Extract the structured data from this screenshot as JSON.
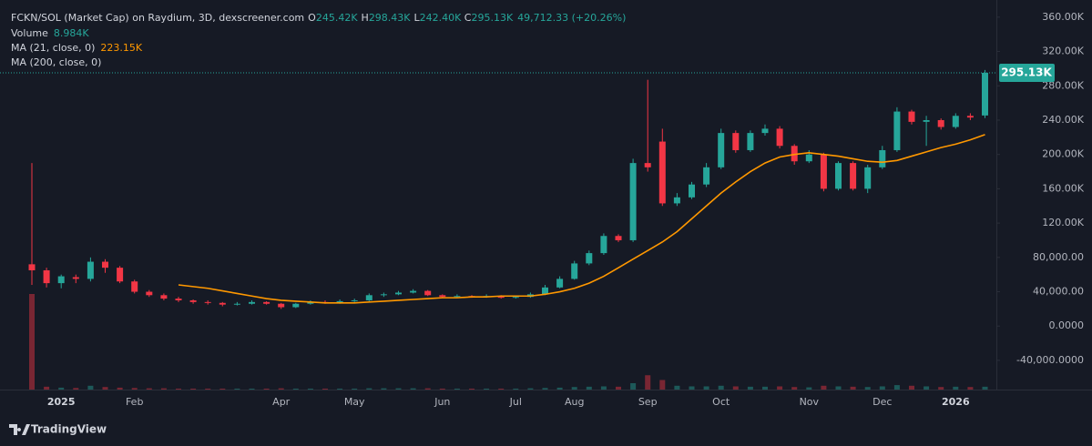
{
  "chart_data": {
    "type": "candlestick",
    "title": "FCKN/SOL (Market Cap) on Raydium, 3D, dexscreener.com",
    "legend": {
      "o": "O",
      "open": "245.42K",
      "h": "H",
      "high": "298.43K",
      "l": "L",
      "low": "242.40K",
      "c": "C",
      "close": "295.13K",
      "change": "49,712.33 (+20.26%)"
    },
    "last_price_label": "295.13K",
    "brand": "TradingView",
    "up_color": "#26a69a",
    "down_color": "#f23645",
    "categories": [
      null,
      null,
      "2025",
      null,
      null,
      null,
      null,
      "Feb",
      null,
      null,
      null,
      null,
      null,
      null,
      null,
      null,
      null,
      "Apr",
      null,
      null,
      null,
      null,
      "May",
      null,
      null,
      null,
      null,
      null,
      "Jun",
      null,
      null,
      null,
      null,
      "Jul",
      null,
      null,
      null,
      "Aug",
      null,
      null,
      null,
      null,
      "Sep",
      null,
      null,
      null,
      null,
      "Oct",
      null,
      null,
      null,
      null,
      null,
      "Nov",
      null,
      null,
      null,
      null,
      "Dec",
      null,
      null,
      null,
      null,
      "2026",
      null,
      null
    ],
    "open": [
      72000,
      65000,
      50000,
      57000,
      55000,
      75000,
      68000,
      52000,
      40000,
      36000,
      32000,
      30000,
      28000,
      27000,
      25000,
      26000,
      28000,
      26000,
      22000,
      26000,
      28000,
      27000,
      29000,
      30000,
      36000,
      37000,
      39000,
      41000,
      36000,
      34000,
      35000,
      34000,
      35000,
      33000,
      34000,
      37000,
      45000,
      55000,
      73000,
      85000,
      105000,
      100000,
      190000,
      215000,
      143000,
      150000,
      165000,
      185000,
      225000,
      205000,
      225000,
      230000,
      210000,
      192000,
      200000,
      160000,
      190000,
      160000,
      185000,
      205000,
      250000,
      238000,
      240000,
      232000,
      245000,
      245420
    ],
    "high": [
      190000,
      68000,
      60000,
      60000,
      80000,
      78000,
      70000,
      54000,
      42000,
      38000,
      34000,
      31000,
      30000,
      28000,
      28000,
      30000,
      29000,
      27000,
      27000,
      30000,
      30000,
      31000,
      32000,
      38000,
      39000,
      41000,
      43000,
      42000,
      37000,
      37000,
      36000,
      37000,
      36000,
      35000,
      39000,
      48000,
      58000,
      76000,
      88000,
      108000,
      107000,
      195000,
      287000,
      230000,
      155000,
      168000,
      190000,
      230000,
      228000,
      228000,
      235000,
      233000,
      212000,
      205000,
      202000,
      192000,
      192000,
      188000,
      210000,
      255000,
      252000,
      245000,
      242000,
      248000,
      248000,
      298430
    ],
    "low": [
      48000,
      45000,
      44000,
      50000,
      52000,
      62000,
      50000,
      38000,
      34000,
      30000,
      28000,
      26000,
      25000,
      23000,
      24000,
      25000,
      25000,
      20000,
      21000,
      25000,
      26000,
      26000,
      28000,
      29000,
      34000,
      36000,
      38000,
      35000,
      33000,
      33000,
      33000,
      33000,
      32000,
      32000,
      33000,
      36000,
      44000,
      54000,
      71000,
      83000,
      98000,
      98000,
      180000,
      140000,
      140000,
      148000,
      162000,
      183000,
      202000,
      203000,
      222000,
      207000,
      188000,
      190000,
      157000,
      158000,
      158000,
      155000,
      183000,
      203000,
      235000,
      210000,
      229000,
      230000,
      240000,
      242400
    ],
    "close": [
      65000,
      50000,
      58000,
      55000,
      75000,
      68000,
      52000,
      40000,
      36000,
      32000,
      30000,
      28000,
      27000,
      25000,
      26000,
      28000,
      26000,
      22000,
      26000,
      28000,
      27000,
      29000,
      30000,
      36000,
      37000,
      39000,
      41000,
      36000,
      34000,
      35000,
      34000,
      35000,
      33000,
      34000,
      37000,
      45000,
      55000,
      73000,
      85000,
      105000,
      100000,
      190000,
      185000,
      143000,
      150000,
      165000,
      185000,
      225000,
      205000,
      225000,
      230000,
      210000,
      192000,
      200000,
      160000,
      190000,
      160000,
      185000,
      205000,
      250000,
      238000,
      240000,
      232000,
      245000,
      243000,
      295130
    ],
    "volume": {
      "label": "Volume",
      "value_label": "8.984K",
      "values": [
        300000,
        9000,
        6000,
        5000,
        12000,
        8000,
        6000,
        5000,
        4000,
        4000,
        3000,
        3000,
        3000,
        3000,
        3000,
        3000,
        3000,
        4000,
        3000,
        3000,
        3000,
        3000,
        3000,
        4000,
        4000,
        4000,
        4000,
        4000,
        3000,
        3000,
        3000,
        3000,
        3000,
        3000,
        4000,
        5000,
        6000,
        8000,
        9000,
        10000,
        9000,
        20000,
        45000,
        30000,
        12000,
        10000,
        10000,
        12000,
        10000,
        9000,
        9000,
        10000,
        8000,
        7000,
        12000,
        10000,
        9000,
        8000,
        10000,
        14000,
        12000,
        10000,
        8000,
        9000,
        8000,
        8984
      ]
    },
    "ma21": {
      "label": "MA (21, close, 0)",
      "value_label": "223.15K",
      "color": "#ff9800",
      "values": [
        null,
        null,
        null,
        null,
        null,
        null,
        null,
        null,
        null,
        null,
        48000,
        46000,
        44000,
        41000,
        38000,
        35000,
        32000,
        30000,
        29000,
        28000,
        27000,
        27000,
        27000,
        28000,
        29000,
        30000,
        31000,
        32000,
        33000,
        33000,
        34000,
        34000,
        35000,
        35000,
        35000,
        37000,
        40000,
        44000,
        50000,
        58000,
        68000,
        78000,
        88000,
        98000,
        110000,
        125000,
        140000,
        155000,
        168000,
        180000,
        190000,
        197000,
        200000,
        202000,
        200000,
        198000,
        195000,
        192000,
        191000,
        193000,
        198000,
        203000,
        208000,
        212000,
        217000,
        223150
      ]
    },
    "ma200": {
      "label": "MA (200, close, 0)"
    },
    "ylim": [
      -74000,
      380000
    ],
    "yticks": [
      {
        "value": 360000,
        "label": "360.00K"
      },
      {
        "value": 320000,
        "label": "320.00K"
      },
      {
        "value": 280000,
        "label": "280.00K"
      },
      {
        "value": 240000,
        "label": "240.00K"
      },
      {
        "value": 200000,
        "label": "200.00K"
      },
      {
        "value": 160000,
        "label": "160.00K"
      },
      {
        "value": 120000,
        "label": "120.00K"
      },
      {
        "value": 80000,
        "label": "80,000.00"
      },
      {
        "value": 40000,
        "label": "40,000.00"
      },
      {
        "value": 0,
        "label": "0.0000"
      },
      {
        "value": -40000,
        "label": "-40,000.0000"
      }
    ],
    "grid": false
  }
}
